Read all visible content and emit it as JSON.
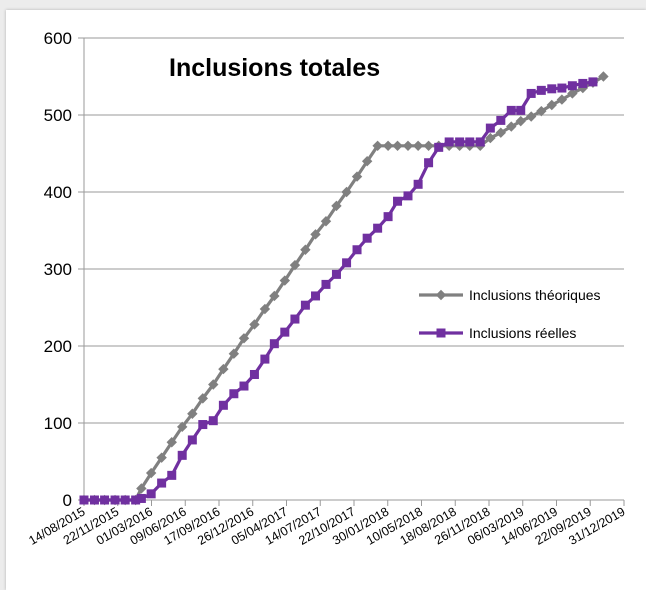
{
  "chart_data": {
    "type": "line",
    "title": "Inclusions totales",
    "xlabel": "",
    "ylabel": "",
    "ylim": [
      0,
      600
    ],
    "yticks": [
      0,
      100,
      200,
      300,
      400,
      500,
      600
    ],
    "x_tick_labels": [
      "14/08/2015",
      "22/11/2015",
      "01/03/2016",
      "09/06/2016",
      "17/09/2016",
      "26/12/2016",
      "05/04/2017",
      "14/07/2017",
      "22/10/2017",
      "30/01/2018",
      "10/05/2018",
      "18/08/2018",
      "26/11/2018",
      "06/03/2019",
      "14/06/2019",
      "22/09/2019",
      "31/12/2019"
    ],
    "grid": "horizontal",
    "legend_position": "right",
    "series": [
      {
        "name": "Inclusions théoriques",
        "color": "#808080",
        "marker": "diamond",
        "points": [
          [
            "2015-08-14",
            0
          ],
          [
            "2015-09-14",
            0
          ],
          [
            "2015-10-14",
            0
          ],
          [
            "2015-11-14",
            0
          ],
          [
            "2015-12-14",
            0
          ],
          [
            "2016-01-14",
            0
          ],
          [
            "2016-01-31",
            15
          ],
          [
            "2016-02-29",
            35
          ],
          [
            "2016-03-31",
            55
          ],
          [
            "2016-04-30",
            75
          ],
          [
            "2016-05-31",
            95
          ],
          [
            "2016-06-30",
            112
          ],
          [
            "2016-07-31",
            132
          ],
          [
            "2016-08-31",
            150
          ],
          [
            "2016-09-30",
            170
          ],
          [
            "2016-10-31",
            190
          ],
          [
            "2016-11-30",
            210
          ],
          [
            "2016-12-31",
            228
          ],
          [
            "2017-01-31",
            248
          ],
          [
            "2017-02-28",
            265
          ],
          [
            "2017-03-31",
            285
          ],
          [
            "2017-04-30",
            305
          ],
          [
            "2017-05-31",
            325
          ],
          [
            "2017-06-30",
            345
          ],
          [
            "2017-07-31",
            362
          ],
          [
            "2017-08-31",
            382
          ],
          [
            "2017-09-30",
            400
          ],
          [
            "2017-10-31",
            420
          ],
          [
            "2017-11-30",
            440
          ],
          [
            "2017-12-31",
            460
          ],
          [
            "2018-01-31",
            460
          ],
          [
            "2018-02-28",
            460
          ],
          [
            "2018-03-31",
            460
          ],
          [
            "2018-04-30",
            460
          ],
          [
            "2018-05-31",
            460
          ],
          [
            "2018-06-30",
            460
          ],
          [
            "2018-07-31",
            460
          ],
          [
            "2018-08-31",
            460
          ],
          [
            "2018-09-30",
            460
          ],
          [
            "2018-10-31",
            460
          ],
          [
            "2018-11-30",
            470
          ],
          [
            "2018-12-31",
            477
          ],
          [
            "2019-01-31",
            485
          ],
          [
            "2019-02-28",
            492
          ],
          [
            "2019-03-31",
            498
          ],
          [
            "2019-04-30",
            505
          ],
          [
            "2019-05-31",
            513
          ],
          [
            "2019-06-30",
            520
          ],
          [
            "2019-07-31",
            528
          ],
          [
            "2019-08-31",
            535
          ],
          [
            "2019-09-30",
            542
          ],
          [
            "2019-10-31",
            550
          ]
        ]
      },
      {
        "name": "Inclusions réelles",
        "color": "#7030a0",
        "marker": "square",
        "points": [
          [
            "2015-08-14",
            0
          ],
          [
            "2015-09-14",
            0
          ],
          [
            "2015-10-14",
            0
          ],
          [
            "2015-11-14",
            0
          ],
          [
            "2015-12-14",
            0
          ],
          [
            "2016-01-14",
            0
          ],
          [
            "2016-01-31",
            2
          ],
          [
            "2016-02-29",
            8
          ],
          [
            "2016-03-31",
            22
          ],
          [
            "2016-04-30",
            32
          ],
          [
            "2016-05-31",
            58
          ],
          [
            "2016-06-30",
            78
          ],
          [
            "2016-07-31",
            98
          ],
          [
            "2016-08-31",
            103
          ],
          [
            "2016-09-30",
            123
          ],
          [
            "2016-10-31",
            138
          ],
          [
            "2016-11-30",
            148
          ],
          [
            "2016-12-31",
            163
          ],
          [
            "2017-01-31",
            183
          ],
          [
            "2017-02-28",
            203
          ],
          [
            "2017-03-31",
            218
          ],
          [
            "2017-04-30",
            235
          ],
          [
            "2017-05-31",
            253
          ],
          [
            "2017-06-30",
            265
          ],
          [
            "2017-07-31",
            280
          ],
          [
            "2017-08-31",
            293
          ],
          [
            "2017-09-30",
            308
          ],
          [
            "2017-10-31",
            325
          ],
          [
            "2017-11-30",
            340
          ],
          [
            "2017-12-31",
            353
          ],
          [
            "2018-01-31",
            368
          ],
          [
            "2018-02-28",
            388
          ],
          [
            "2018-03-31",
            395
          ],
          [
            "2018-04-30",
            410
          ],
          [
            "2018-05-31",
            438
          ],
          [
            "2018-06-30",
            458
          ],
          [
            "2018-07-31",
            465
          ],
          [
            "2018-08-31",
            465
          ],
          [
            "2018-09-30",
            465
          ],
          [
            "2018-10-31",
            465
          ],
          [
            "2018-11-30",
            483
          ],
          [
            "2018-12-31",
            493
          ],
          [
            "2019-01-31",
            506
          ],
          [
            "2019-02-28",
            506
          ],
          [
            "2019-03-31",
            528
          ],
          [
            "2019-04-30",
            532
          ],
          [
            "2019-05-31",
            534
          ],
          [
            "2019-06-30",
            535
          ],
          [
            "2019-07-31",
            538
          ],
          [
            "2019-08-31",
            541
          ],
          [
            "2019-09-30",
            543
          ]
        ]
      }
    ]
  }
}
